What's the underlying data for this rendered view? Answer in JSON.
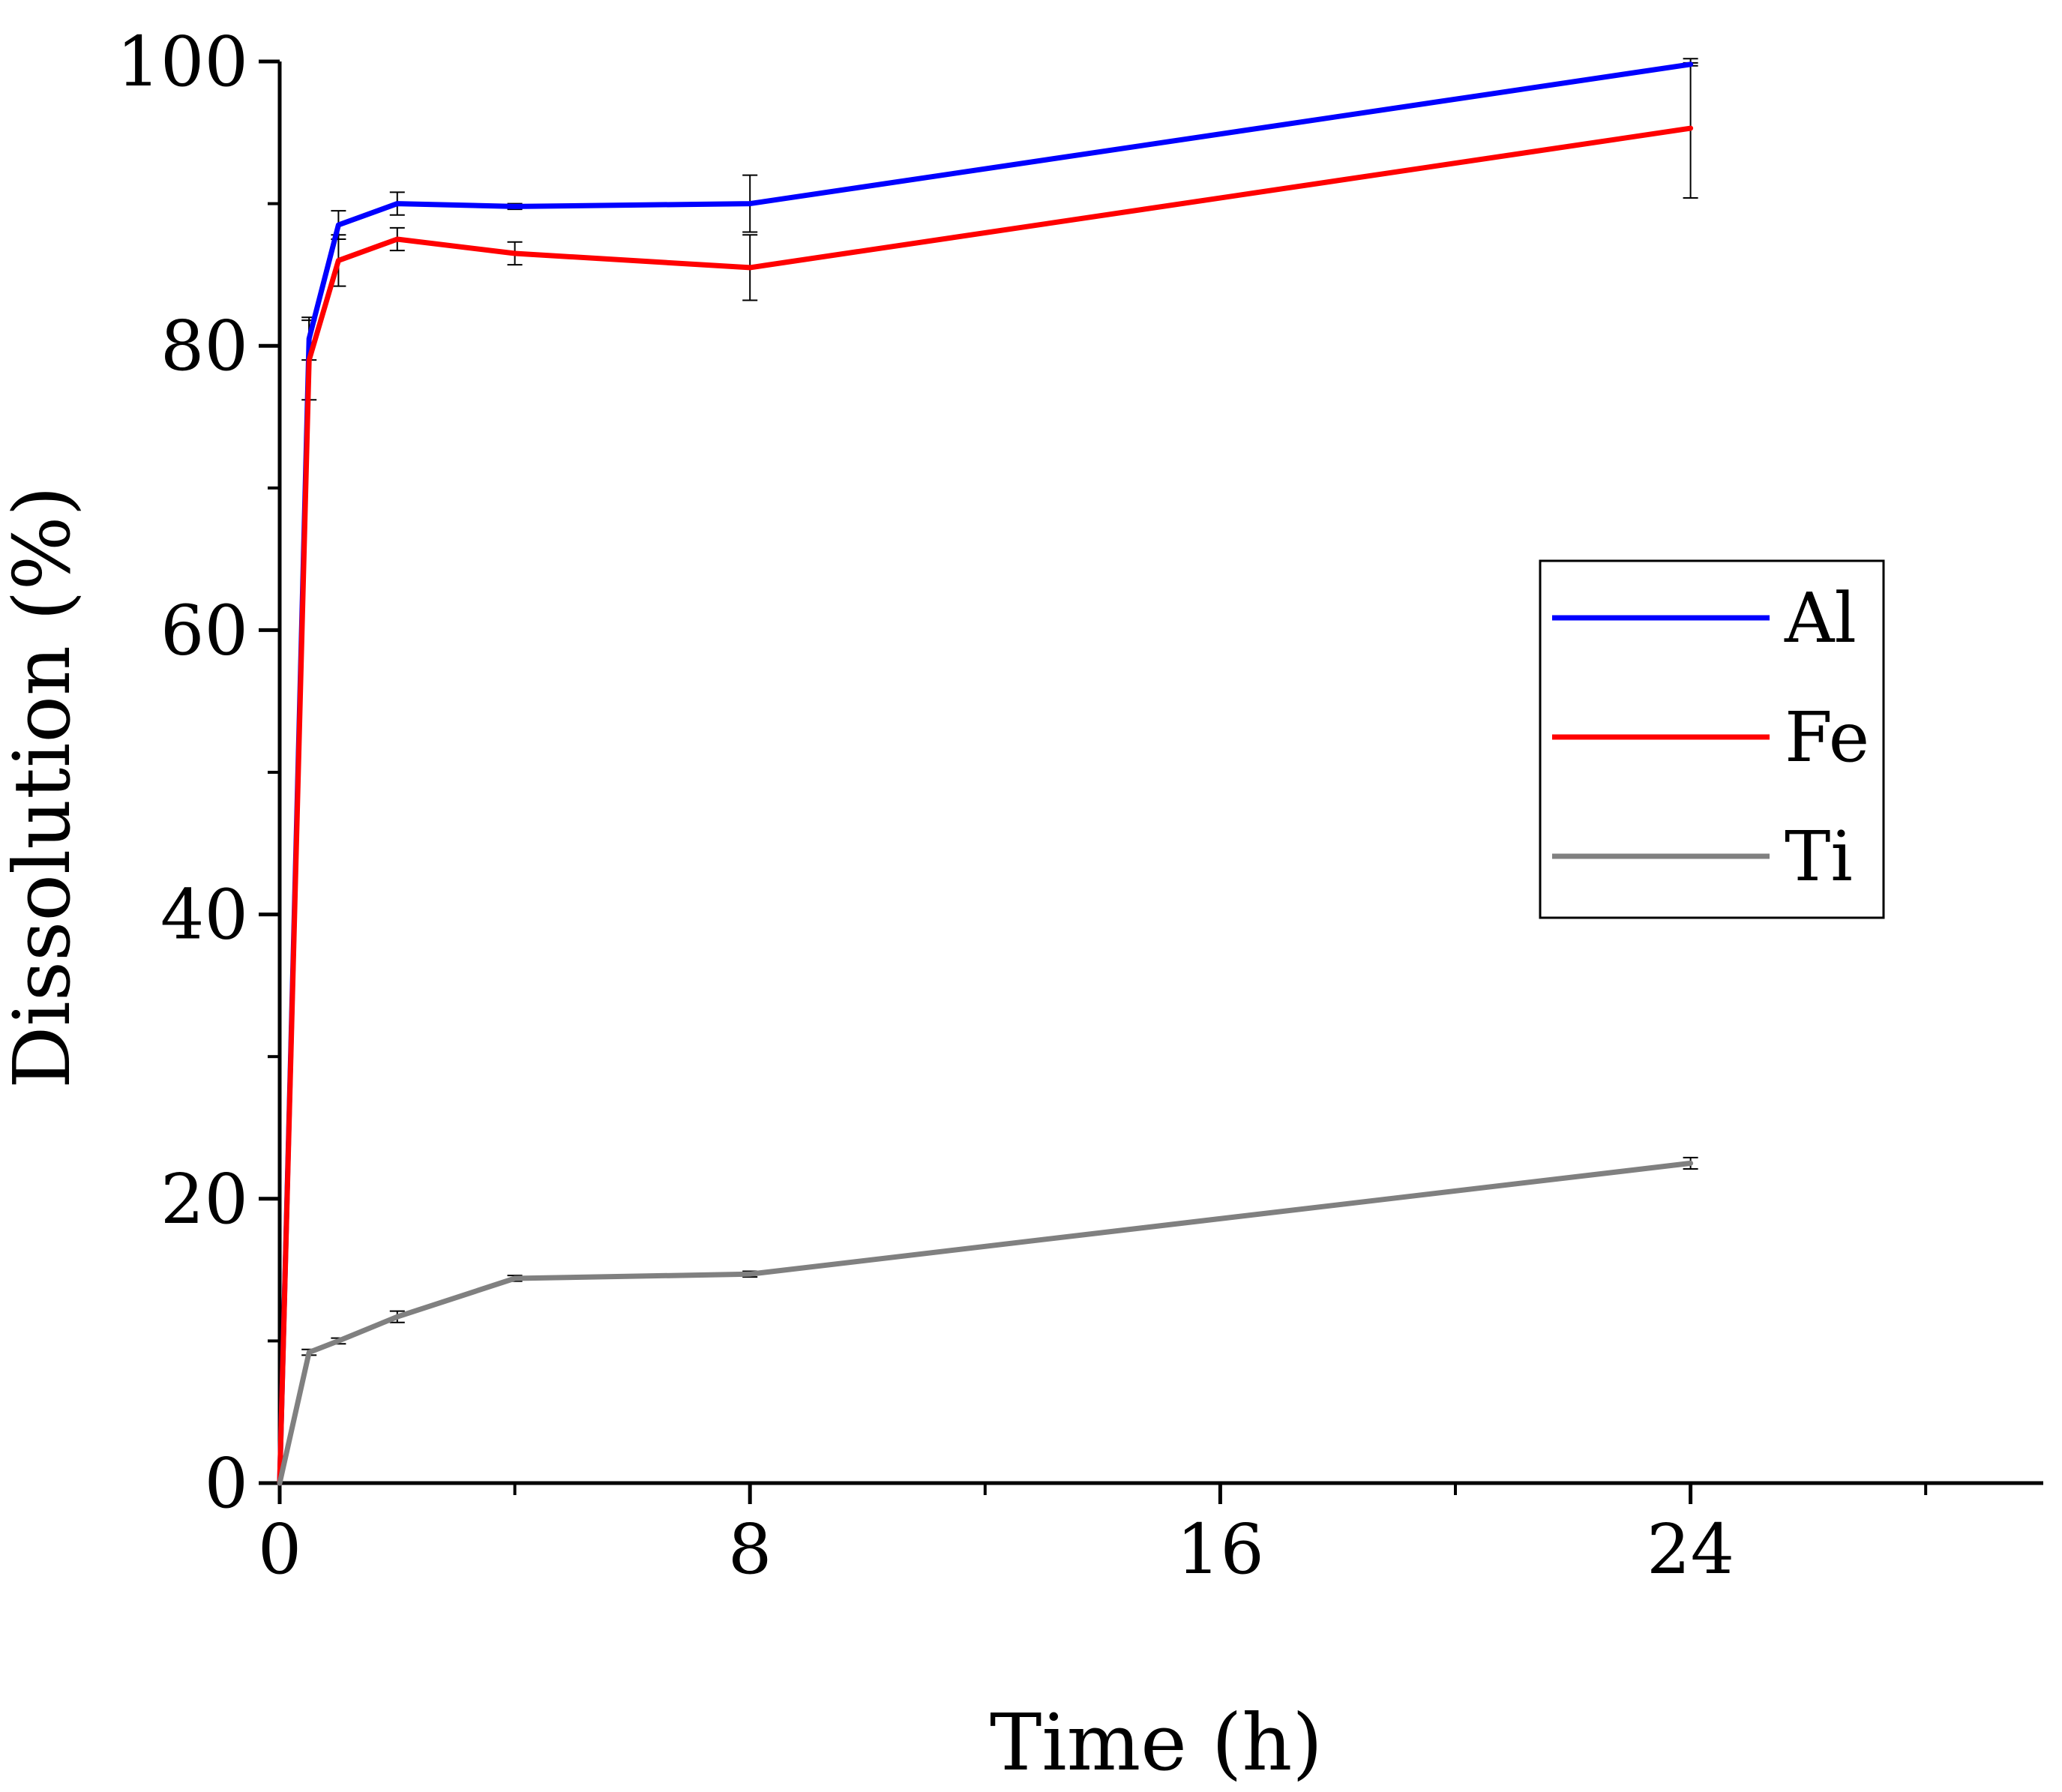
{
  "chart_data": {
    "type": "line",
    "title": "",
    "xlabel": "Time (h)",
    "ylabel": "Dissolution (%)",
    "xlim": [
      0,
      30
    ],
    "ylim": [
      0,
      100
    ],
    "xticks": [
      0,
      8,
      16,
      24
    ],
    "xticks_minor": [
      4,
      12,
      20,
      28
    ],
    "yticks": [
      0,
      20,
      40,
      60,
      80,
      100
    ],
    "yticks_minor": [
      10,
      30,
      50,
      70,
      90
    ],
    "x": [
      0,
      0.5,
      1,
      2,
      4,
      8,
      24
    ],
    "series": [
      {
        "name": "Al",
        "color": "#0000ff",
        "values": [
          0,
          80.5,
          88.5,
          90.0,
          89.8,
          90.0,
          99.8
        ],
        "errors": [
          0,
          1.5,
          1.0,
          0.8,
          0.2,
          2.0,
          0.1
        ]
      },
      {
        "name": "Fe",
        "color": "#ff0000",
        "values": [
          0,
          79.0,
          86.0,
          87.5,
          86.5,
          85.5,
          95.3
        ],
        "errors": [
          0,
          2.8,
          1.8,
          0.8,
          0.8,
          2.3,
          4.9
        ]
      },
      {
        "name": "Ti",
        "color": "#808080",
        "values": [
          0,
          9.2,
          10.0,
          11.7,
          14.4,
          14.7,
          22.5
        ],
        "errors": [
          0,
          0.2,
          0.2,
          0.4,
          0.2,
          0.2,
          0.4
        ]
      }
    ],
    "legend": "right",
    "grid": false
  }
}
